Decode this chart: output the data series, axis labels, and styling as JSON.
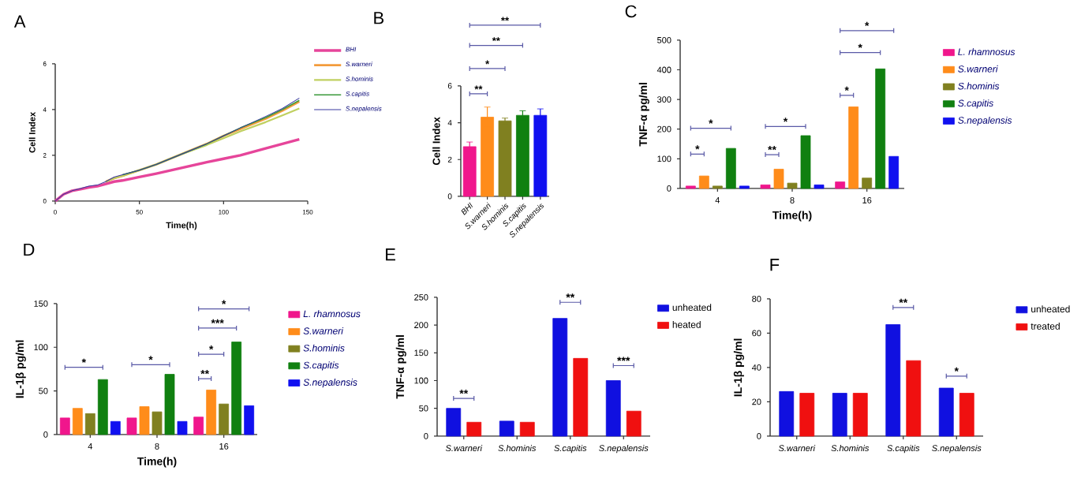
{
  "chart_data": [
    {
      "type": "line",
      "title": "A",
      "xlabel": "Time(h)",
      "ylabel": "Cell Index",
      "x": [
        0,
        5,
        10,
        15,
        20,
        25,
        30,
        35,
        40,
        50,
        60,
        75,
        90,
        100,
        110,
        125,
        135,
        145
      ],
      "xlim": [
        0,
        150
      ],
      "xticks": [
        0,
        50,
        100,
        150
      ],
      "ylim": [
        0,
        6
      ],
      "yticks": [
        0,
        2,
        4,
        6
      ],
      "legend": "top right",
      "series": [
        {
          "name": "BHI",
          "color": "#e6459a",
          "values": [
            0,
            0.3,
            0.45,
            0.52,
            0.6,
            0.65,
            0.75,
            0.85,
            0.9,
            1.05,
            1.2,
            1.45,
            1.7,
            1.85,
            2.0,
            2.3,
            2.5,
            2.7
          ]
        },
        {
          "name": "S.warneri",
          "color": "#f39c3c",
          "values": [
            null,
            null,
            null,
            null,
            null,
            null,
            0.85,
            1.0,
            1.1,
            1.35,
            1.6,
            2.05,
            2.5,
            2.85,
            3.15,
            3.6,
            3.95,
            4.35
          ]
        },
        {
          "name": "S.hominis",
          "color": "#c0d060",
          "values": [
            null,
            null,
            null,
            null,
            null,
            null,
            0.85,
            1.0,
            1.1,
            1.35,
            1.6,
            2.05,
            2.45,
            2.75,
            3.05,
            3.45,
            3.75,
            4.05
          ]
        },
        {
          "name": "S.capitis",
          "color": "#3a9a3a",
          "values": [
            null,
            null,
            null,
            null,
            null,
            null,
            null,
            null,
            1.15,
            1.35,
            1.6,
            2.05,
            2.5,
            2.85,
            3.2,
            3.65,
            4.0,
            4.4
          ]
        },
        {
          "name": "S.nepalensis",
          "color": "#3a3aa0",
          "values": [
            0,
            0.3,
            0.45,
            0.55,
            0.65,
            0.7,
            0.85,
            1.05,
            1.15,
            1.35,
            1.6,
            2.05,
            2.5,
            2.85,
            3.2,
            3.7,
            4.05,
            4.5
          ]
        }
      ]
    },
    {
      "type": "bar",
      "title": "B",
      "ylabel": "Cell Index",
      "categories": [
        "BHI",
        "S.warneri",
        "S.hominis",
        "S.capitis",
        "S.nepalensis"
      ],
      "values": [
        2.7,
        4.3,
        4.1,
        4.4,
        4.4
      ],
      "errors": [
        0.25,
        0.55,
        0.15,
        0.25,
        0.35
      ],
      "colors": [
        "#f0168c",
        "#ff8c1a",
        "#808020",
        "#108010",
        "#1010f0"
      ],
      "ylim": [
        0,
        6
      ],
      "yticks": [
        0,
        2,
        4,
        6
      ],
      "annotations": [
        "**",
        "*",
        "**",
        "**"
      ]
    },
    {
      "type": "bar",
      "title": "C",
      "xlabel": "Time(h)",
      "ylabel": "TNF-α pg/ml",
      "categories": [
        "4",
        "8",
        "16"
      ],
      "ylim": [
        0,
        500
      ],
      "yticks": [
        0,
        100,
        200,
        300,
        400,
        500
      ],
      "legend": "right",
      "series": [
        {
          "name": "L. rhamnosus",
          "color": "#f0168c",
          "values": [
            8,
            12,
            22
          ]
        },
        {
          "name": "S.warneri",
          "color": "#ff8c1a",
          "values": [
            42,
            65,
            275
          ]
        },
        {
          "name": "S.hominis",
          "color": "#808020",
          "values": [
            8,
            18,
            35
          ]
        },
        {
          "name": "S.capitis",
          "color": "#108010",
          "values": [
            135,
            178,
            403
          ]
        },
        {
          "name": "S.nepalensis",
          "color": "#1010f0",
          "values": [
            8,
            12,
            108
          ]
        }
      ],
      "annotations": [
        "*",
        "*",
        "**",
        "*",
        "*",
        "*",
        "*"
      ]
    },
    {
      "type": "bar",
      "title": "D",
      "xlabel": "Time(h)",
      "ylabel": "IL-1β pg/ml",
      "categories": [
        "4",
        "8",
        "16"
      ],
      "ylim": [
        0,
        150
      ],
      "yticks": [
        0,
        50,
        100,
        150
      ],
      "legend": "right",
      "series": [
        {
          "name": "L. rhamnosus",
          "color": "#f0168c",
          "values": [
            19,
            19,
            20
          ]
        },
        {
          "name": "S.warneri",
          "color": "#ff8c1a",
          "values": [
            30,
            32,
            51
          ]
        },
        {
          "name": "S.hominis",
          "color": "#808020",
          "values": [
            24,
            26,
            35
          ]
        },
        {
          "name": "S.capitis",
          "color": "#108010",
          "values": [
            63,
            69,
            106
          ]
        },
        {
          "name": "S.nepalensis",
          "color": "#1010f0",
          "values": [
            15,
            15,
            33
          ]
        }
      ],
      "annotations": [
        "*",
        "*",
        "**",
        "*",
        "***",
        "*"
      ]
    },
    {
      "type": "bar",
      "ylabel": "TNF-α pg/ml",
      "title": "E",
      "categories": [
        "S.warneri",
        "S.hominis",
        "S.capitis",
        "S.nepalensis"
      ],
      "ylim": [
        0,
        250
      ],
      "yticks": [
        0,
        50,
        100,
        150,
        200,
        250
      ],
      "legend": "right",
      "series": [
        {
          "name": "unheated",
          "color": "#1010e0",
          "values": [
            50,
            27,
            212,
            100
          ]
        },
        {
          "name": "heated",
          "color": "#f01010",
          "values": [
            25,
            25,
            140,
            45
          ]
        }
      ],
      "annotations": [
        "**",
        "**",
        "***"
      ]
    },
    {
      "type": "bar",
      "ylabel": "IL-1β pg/ml",
      "title": "F",
      "categories": [
        "S.warneri",
        "S.hominis",
        "S.capitis",
        "S.nepalensis"
      ],
      "ylim": [
        0,
        80
      ],
      "yticks": [
        0,
        20,
        40,
        60,
        80
      ],
      "legend": "right",
      "series": [
        {
          "name": "unheated",
          "color": "#1010e0",
          "values": [
            26,
            25,
            65,
            28
          ]
        },
        {
          "name": "treated",
          "color": "#f01010",
          "values": [
            25,
            25,
            44,
            25
          ]
        }
      ],
      "annotations": [
        "**",
        "*"
      ]
    }
  ]
}
